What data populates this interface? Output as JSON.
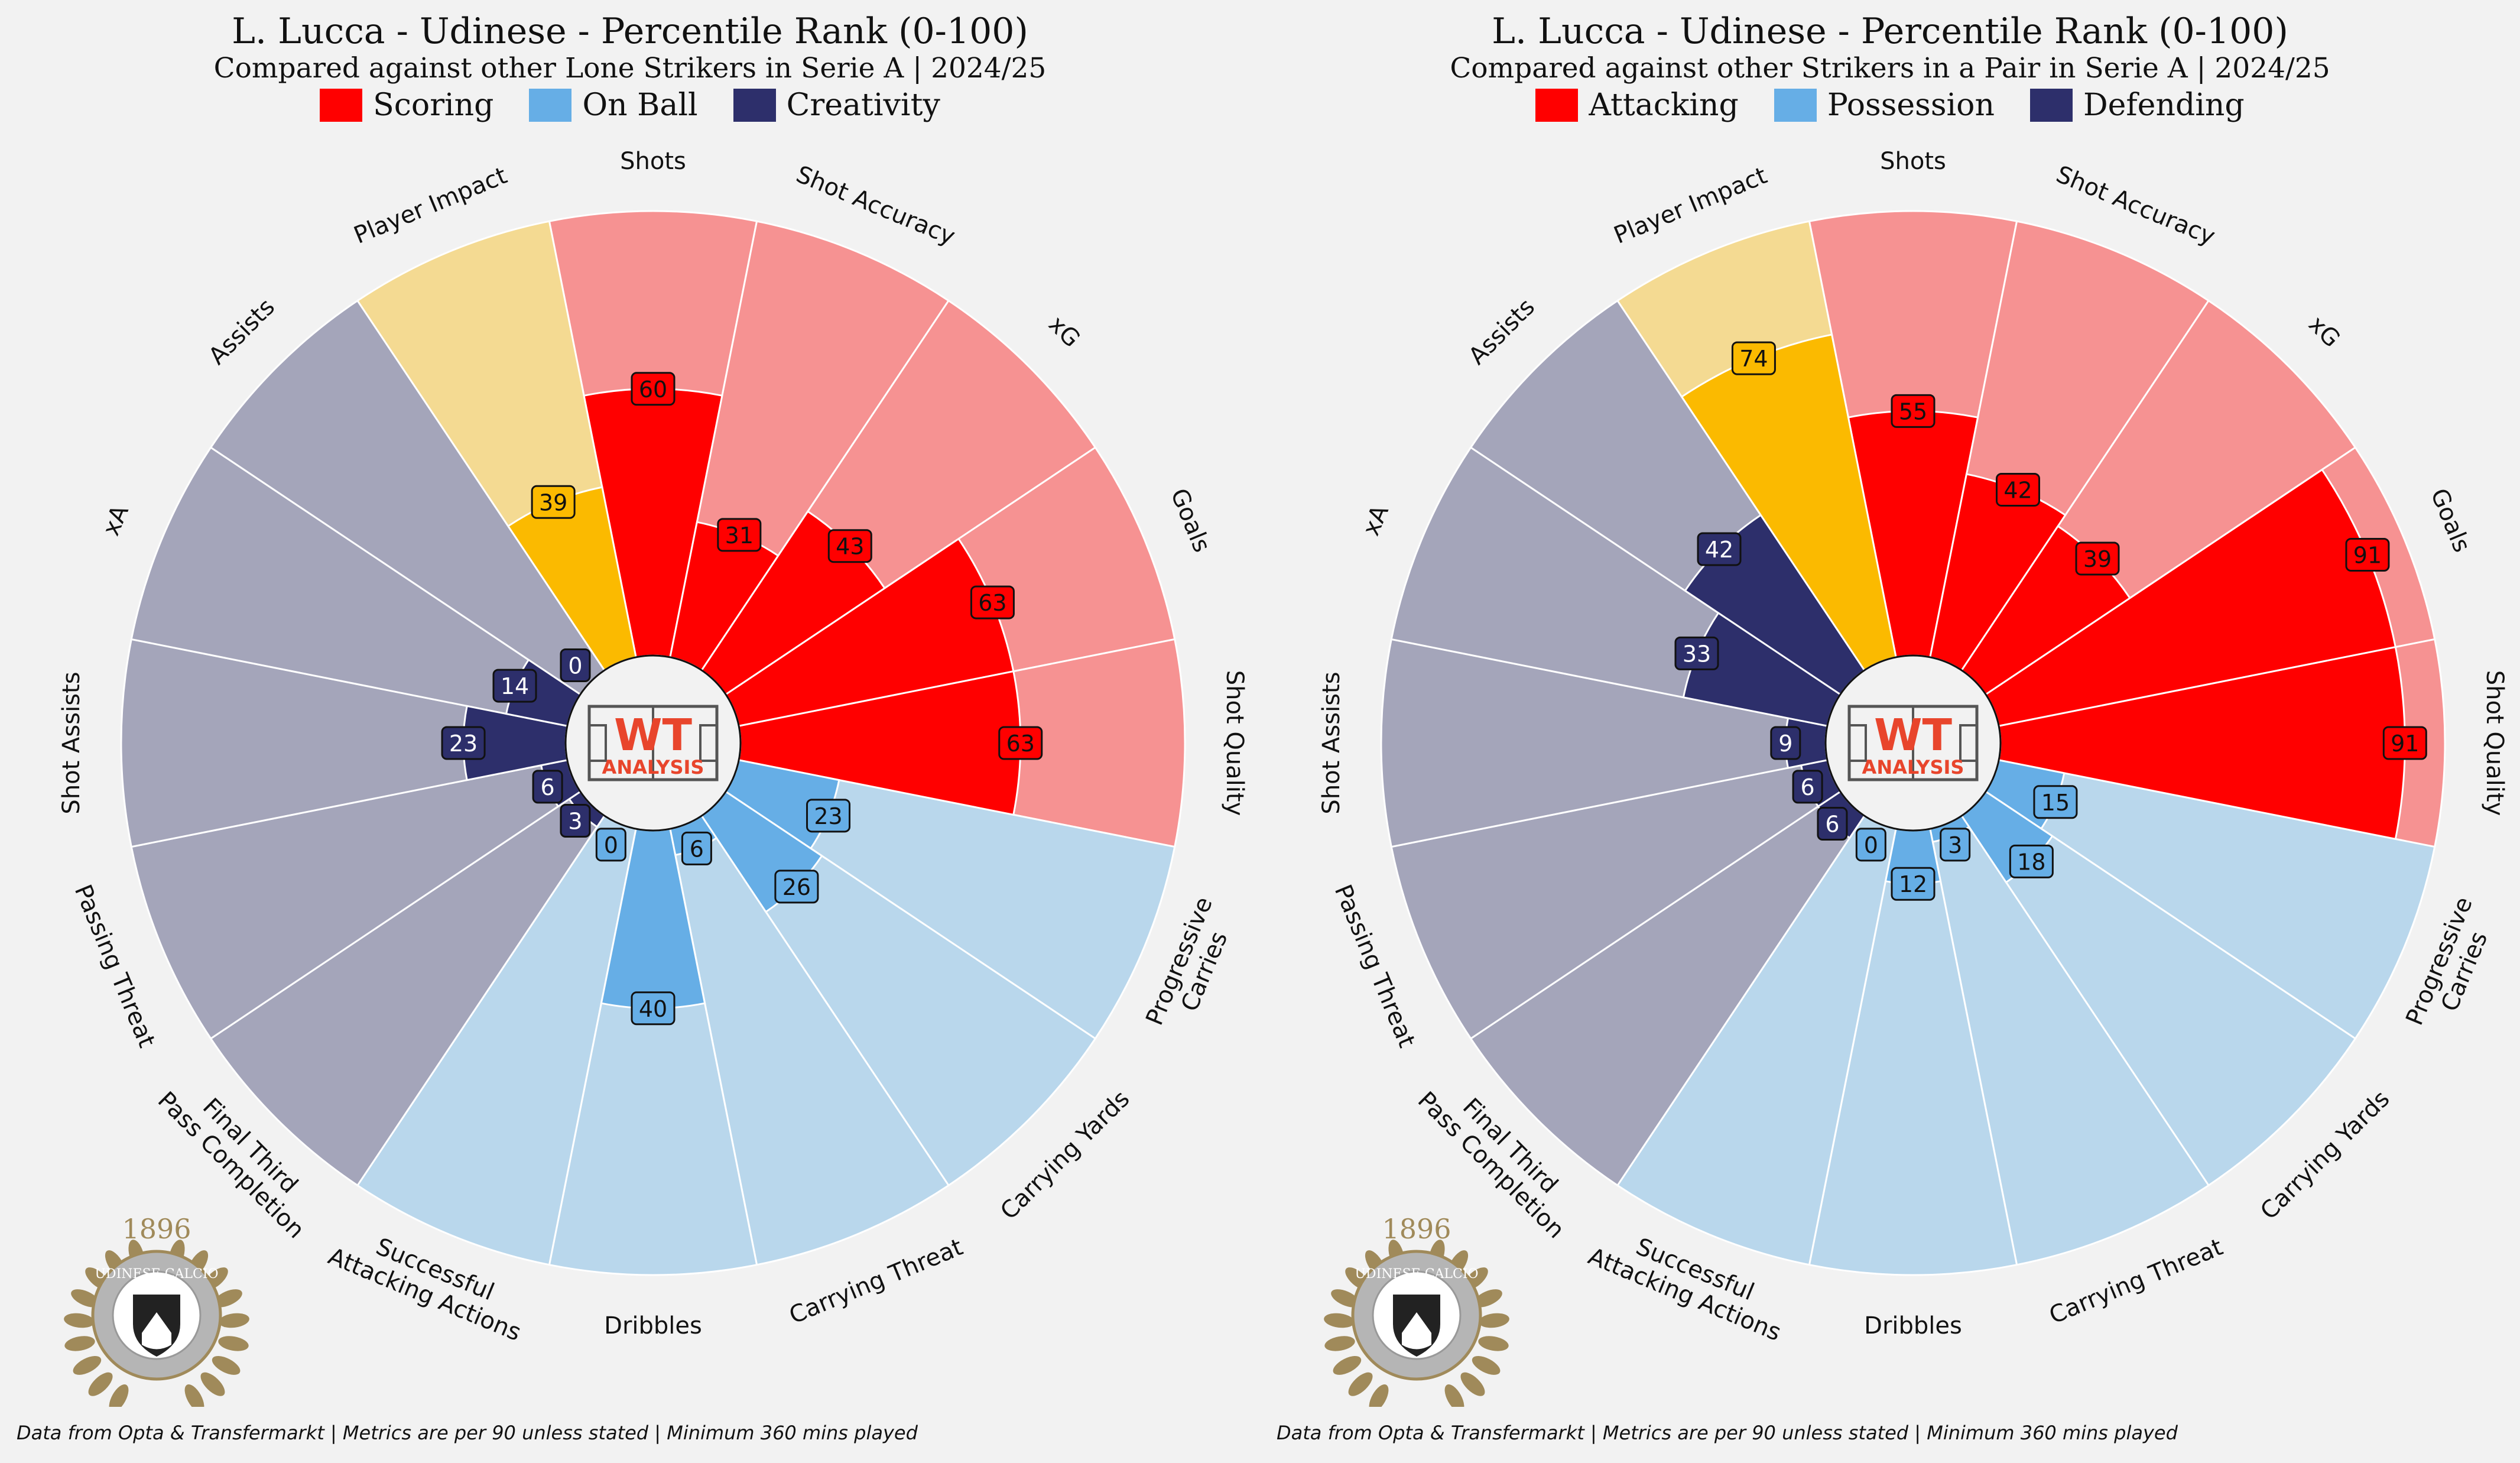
{
  "chart_data": [
    {
      "type": "radial-bar",
      "title": "L. Lucca - Udinese - Percentile Rank (0-100)",
      "subtitle": "Compared against other Lone Strikers in Serie A | 2024/25",
      "legend": [
        {
          "label": "Scoring",
          "color": "#ff0000"
        },
        {
          "label": "On Ball",
          "color": "#66aee6"
        },
        {
          "label": "Creativity",
          "color": "#2d2f6b"
        }
      ],
      "range": [
        0,
        100
      ],
      "categories": [
        "Shots",
        "Shot Accuracy",
        "xG",
        "Goals",
        "Shot Quality",
        "Progressive\nCarries",
        "Carrying Yards",
        "Carrying Threat",
        "Dribbles",
        "Successful\nAttacking Actions",
        "Final Third\nPass Completion",
        "Passing Threat",
        "Shot Assists",
        "xA",
        "Assists",
        "Player Impact"
      ],
      "values": [
        60,
        31,
        43,
        63,
        63,
        23,
        26,
        6,
        40,
        0,
        3,
        6,
        23,
        14,
        0,
        39
      ],
      "groups": [
        "scoring",
        "scoring",
        "scoring",
        "scoring",
        "scoring",
        "onball",
        "onball",
        "onball",
        "onball",
        "onball",
        "creativity",
        "creativity",
        "creativity",
        "creativity",
        "creativity",
        "impact"
      ],
      "footer": "Data from Opta & Transfermarkt | Metrics are per 90 unless stated | Minimum 360 mins played",
      "logo_text": "WT ANALYSIS",
      "crest_text": [
        "1896",
        "UDINESE CALCIO"
      ]
    },
    {
      "type": "radial-bar",
      "title": "L. Lucca - Udinese - Percentile Rank (0-100)",
      "subtitle": "Compared against other Strikers in a Pair in Serie A | 2024/25",
      "legend": [
        {
          "label": "Attacking",
          "color": "#ff0000"
        },
        {
          "label": "Possession",
          "color": "#66aee6"
        },
        {
          "label": "Defending",
          "color": "#2d2f6b"
        }
      ],
      "range": [
        0,
        100
      ],
      "categories": [
        "Shots",
        "Shot Accuracy",
        "xG",
        "Goals",
        "Shot Quality",
        "Progressive\nCarries",
        "Carrying Yards",
        "Carrying Threat",
        "Dribbles",
        "Successful\nAttacking Actions",
        "Final Third\nPass Completion",
        "Passing Threat",
        "Shot Assists",
        "xA",
        "Assists",
        "Player Impact"
      ],
      "values": [
        55,
        42,
        39,
        91,
        91,
        15,
        18,
        3,
        12,
        0,
        6,
        6,
        9,
        33,
        42,
        74
      ],
      "groups": [
        "scoring",
        "scoring",
        "scoring",
        "scoring",
        "scoring",
        "onball",
        "onball",
        "onball",
        "onball",
        "onball",
        "creativity",
        "creativity",
        "creativity",
        "creativity",
        "creativity",
        "impact"
      ],
      "footer": "Data from Opta & Transfermarkt | Metrics are per 90 unless stated | Minimum 360 mins played",
      "logo_text": "WT ANALYSIS",
      "crest_text": [
        "1896",
        "UDINESE CALCIO"
      ]
    }
  ],
  "colors": {
    "scoring": {
      "bar": "#ff0000",
      "bg": "#f69292",
      "box": "#ff0000",
      "text": "#111111"
    },
    "onball": {
      "bar": "#66aee6",
      "bg": "#b9d7ec",
      "box": "#66aee6",
      "text": "#111111"
    },
    "creativity": {
      "bar": "#2d2f6b",
      "bg": "#a4a5ba",
      "box": "#2d2f6b",
      "text": "#ffffff"
    },
    "impact": {
      "bar": "#fbba00",
      "bg": "#f4da92",
      "box": "#fbba00",
      "text": "#111111"
    },
    "crest_gold": "#a08a5a",
    "crest_grey": "#b5b5b5"
  }
}
